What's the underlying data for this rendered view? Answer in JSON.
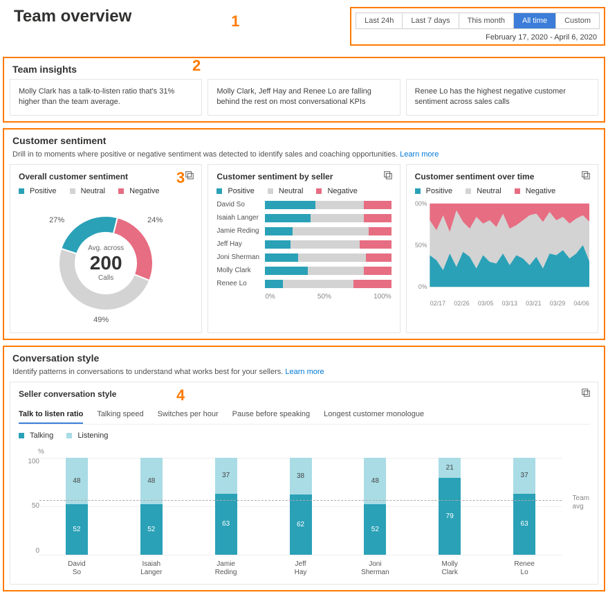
{
  "colors": {
    "positive": "#2aa1b7",
    "neutral": "#d3d3d3",
    "negative": "#e76d82",
    "talking": "#2aa1b7",
    "listening": "#a9dce5",
    "highlight": "#ff7a00",
    "active_filter": "#3b7dd8",
    "link": "#0078d4"
  },
  "header": {
    "title": "Team overview",
    "callout": "1",
    "filters": [
      "Last 24h",
      "Last 7 days",
      "This month",
      "All time",
      "Custom"
    ],
    "active_filter_index": 3,
    "date_range": "February 17, 2020 - April 6, 2020"
  },
  "insights": {
    "title": "Team insights",
    "callout": "2",
    "cards": [
      "Molly Clark has a talk-to-listen ratio that's 31% higher than the team average.",
      "Molly Clark, Jeff Hay and Renee Lo are falling behind the rest on most conversational KPIs",
      "Renee Lo has the highest negative customer sentiment across sales calls"
    ]
  },
  "sentiment": {
    "title": "Customer sentiment",
    "subtitle": "Drill in to moments where positive or negative sentiment was detected to identify sales and coaching opportunities. ",
    "learn_more": "Learn more",
    "callout": "3",
    "legend": {
      "positive": "Positive",
      "neutral": "Neutral",
      "negative": "Negative"
    },
    "overall": {
      "title": "Overall customer sentiment",
      "positive_pct": 24,
      "neutral_pct": 49,
      "negative_pct": 27,
      "center_top": "Avg. across",
      "center_num": "200",
      "center_bottom": "Calls"
    },
    "by_seller": {
      "title": "Customer sentiment by seller",
      "axis": [
        "0%",
        "50%",
        "100%"
      ],
      "sellers": [
        {
          "name": "David So",
          "positive": 40,
          "neutral": 38,
          "negative": 22
        },
        {
          "name": "Isaiah Langer",
          "positive": 36,
          "neutral": 42,
          "negative": 22
        },
        {
          "name": "Jamie Reding",
          "positive": 22,
          "neutral": 60,
          "negative": 18
        },
        {
          "name": "Jeff Hay",
          "positive": 20,
          "neutral": 55,
          "negative": 25
        },
        {
          "name": "Joni Sherman",
          "positive": 26,
          "neutral": 54,
          "negative": 20
        },
        {
          "name": "Molly Clark",
          "positive": 34,
          "neutral": 44,
          "negative": 22
        },
        {
          "name": "Renee Lo",
          "positive": 14,
          "neutral": 56,
          "negative": 30
        }
      ]
    },
    "over_time": {
      "title": "Customer sentiment over time",
      "y_labels": [
        "100%",
        "50%",
        "0%"
      ],
      "x_labels": [
        "02/17",
        "02/26",
        "03/05",
        "03/13",
        "03/21",
        "03/29",
        "04/06"
      ],
      "positive_series": [
        38,
        32,
        20,
        40,
        24,
        42,
        36,
        22,
        38,
        30,
        28,
        40,
        26,
        38,
        34,
        26,
        36,
        22,
        40,
        38,
        44,
        34,
        40,
        50,
        30
      ],
      "negative_series": [
        20,
        32,
        14,
        34,
        8,
        22,
        30,
        16,
        24,
        20,
        28,
        12,
        30,
        26,
        20,
        14,
        12,
        22,
        10,
        20,
        16,
        24,
        18,
        14,
        22
      ]
    }
  },
  "conversation": {
    "title": "Conversation style",
    "subtitle": "Identify patterns in conversations to understand what works best for your sellers. ",
    "learn_more": "Learn more",
    "callout": "4",
    "card_title": "Seller conversation style",
    "tabs": [
      "Talk to listen ratio",
      "Talking speed",
      "Switches per hour",
      "Pause before speaking",
      "Longest customer monologue"
    ],
    "active_tab_index": 0,
    "legend": {
      "talking": "Talking",
      "listening": "Listening"
    },
    "y_unit": "%",
    "y_labels": [
      "100",
      "50",
      "0"
    ],
    "team_avg_label": "Team avg",
    "team_avg_value": 56,
    "sellers": [
      {
        "name": "David So",
        "talking": 52,
        "listening": 48
      },
      {
        "name": "Isaiah Langer",
        "talking": 52,
        "listening": 48
      },
      {
        "name": "Jamie Reding",
        "talking": 63,
        "listening": 37
      },
      {
        "name": "Jeff Hay",
        "talking": 62,
        "listening": 38
      },
      {
        "name": "Joni Sherman",
        "talking": 52,
        "listening": 48
      },
      {
        "name": "Molly Clark",
        "talking": 79,
        "listening": 21
      },
      {
        "name": "Renee Lo",
        "talking": 63,
        "listening": 37
      }
    ]
  }
}
